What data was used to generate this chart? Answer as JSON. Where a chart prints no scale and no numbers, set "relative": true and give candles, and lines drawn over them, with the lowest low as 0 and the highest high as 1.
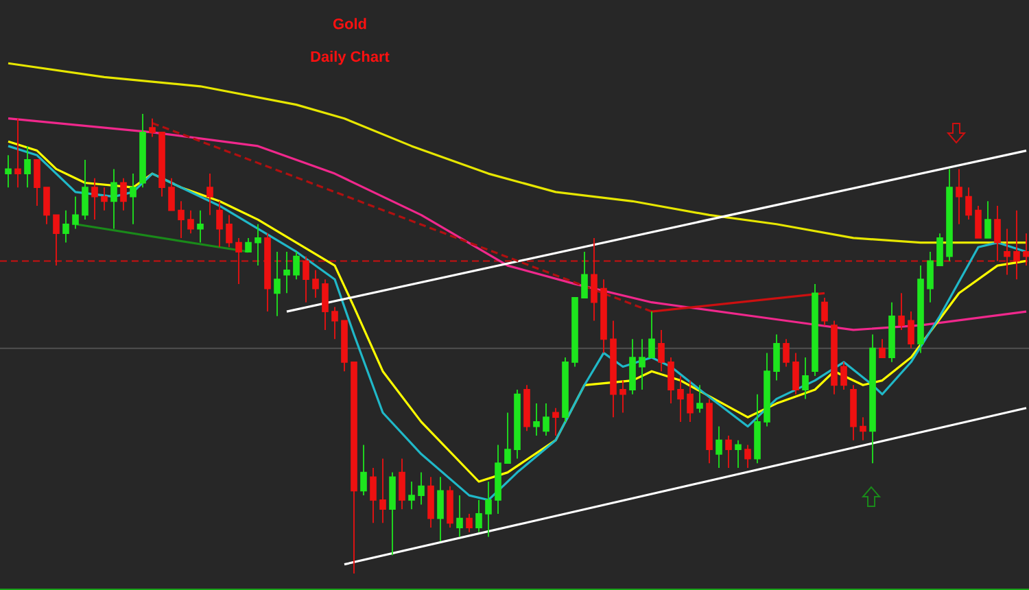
{
  "chart_data": {
    "type": "candlestick",
    "title": "Gold",
    "subtitle": "Daily Chart",
    "relative": true,
    "categories": [
      null,
      null,
      null,
      null,
      null,
      null,
      null,
      null,
      null,
      null,
      null,
      null,
      null,
      null,
      null,
      null,
      null,
      null,
      null,
      null,
      null,
      null,
      null,
      null,
      null,
      null,
      null,
      null,
      null,
      null,
      null,
      null,
      null,
      null,
      null,
      null,
      null,
      null,
      null,
      null,
      null,
      null,
      null,
      null,
      null,
      null,
      null,
      null,
      null,
      null,
      null,
      null,
      null,
      null,
      null,
      null,
      null,
      null,
      null,
      null,
      null,
      null,
      null,
      null,
      null,
      null,
      null,
      null,
      null,
      null,
      null,
      null,
      null,
      null,
      null,
      null,
      null,
      null,
      null,
      null,
      null,
      null,
      null,
      null,
      null,
      null,
      null,
      null,
      null,
      null,
      null,
      null,
      null,
      null,
      null,
      null,
      null,
      null,
      null,
      null,
      null,
      null,
      null,
      null,
      null,
      null,
      null
    ],
    "ohlc": [
      [
        0.87,
        0.91,
        0.84,
        0.88
      ],
      [
        0.88,
        0.99,
        0.84,
        0.87
      ],
      [
        0.87,
        0.93,
        0.84,
        0.9
      ],
      [
        0.9,
        0.9,
        0.8,
        0.84
      ],
      [
        0.84,
        0.84,
        0.76,
        0.78
      ],
      [
        0.78,
        0.78,
        0.67,
        0.74
      ],
      [
        0.74,
        0.79,
        0.72,
        0.76
      ],
      [
        0.76,
        0.82,
        0.75,
        0.78
      ],
      [
        0.78,
        0.9,
        0.77,
        0.84
      ],
      [
        0.84,
        0.86,
        0.77,
        0.82
      ],
      [
        0.82,
        0.84,
        0.79,
        0.81
      ],
      [
        0.81,
        0.88,
        0.75,
        0.85
      ],
      [
        0.85,
        0.86,
        0.79,
        0.81
      ],
      [
        0.82,
        0.87,
        0.76,
        0.84
      ],
      [
        0.85,
        1,
        0.84,
        0.96
      ],
      [
        0.97,
        0.99,
        0.95,
        0.96
      ],
      [
        0.96,
        0.96,
        0.82,
        0.84
      ],
      [
        0.84,
        0.86,
        0.79,
        0.79
      ],
      [
        0.79,
        0.81,
        0.73,
        0.77
      ],
      [
        0.77,
        0.79,
        0.74,
        0.75
      ],
      [
        0.75,
        0.79,
        0.72,
        0.76
      ],
      [
        0.84,
        0.87,
        0.78,
        0.82
      ],
      [
        0.79,
        0.81,
        0.71,
        0.75
      ],
      [
        0.76,
        0.78,
        0.71,
        0.72
      ],
      [
        0.72,
        0.73,
        0.63,
        0.7
      ],
      [
        0.7,
        0.73,
        0.7,
        0.72
      ],
      [
        0.72,
        0.76,
        0.67,
        0.73
      ],
      [
        0.73,
        0.74,
        0.57,
        0.62
      ],
      [
        0.61,
        0.7,
        0.56,
        0.64
      ],
      [
        0.65,
        0.7,
        0.61,
        0.66
      ],
      [
        0.65,
        0.7,
        0.64,
        0.69
      ],
      [
        0.68,
        0.69,
        0.59,
        0.64
      ],
      [
        0.64,
        0.66,
        0.6,
        0.62
      ],
      [
        0.63,
        0.64,
        0.53,
        0.57
      ],
      [
        0.57,
        0.58,
        0.51,
        0.55
      ],
      [
        0.55,
        0.55,
        0.44,
        0.46
      ],
      [
        0.46,
        0.46,
        0,
        0.18
      ],
      [
        0.18,
        0.28,
        0.17,
        0.22
      ],
      [
        0.21,
        0.23,
        0.11,
        0.16
      ],
      [
        0.16,
        0.25,
        0.11,
        0.14
      ],
      [
        0.14,
        0.22,
        0.04,
        0.21
      ],
      [
        0.22,
        0.25,
        0.14,
        0.16
      ],
      [
        0.16,
        0.2,
        0.14,
        0.17
      ],
      [
        0.17,
        0.22,
        0.15,
        0.19
      ],
      [
        0.19,
        0.21,
        0.1,
        0.12
      ],
      [
        0.12,
        0.21,
        0.07,
        0.18
      ],
      [
        0.18,
        0.19,
        0.1,
        0.11
      ],
      [
        0.1,
        0.17,
        0.08,
        0.12
      ],
      [
        0.12,
        0.13,
        0.09,
        0.1
      ],
      [
        0.1,
        0.16,
        0.09,
        0.13
      ],
      [
        0.13,
        0.2,
        0.08,
        0.16
      ],
      [
        0.16,
        0.28,
        0.13,
        0.24
      ],
      [
        0.24,
        0.35,
        0.24,
        0.27
      ],
      [
        0.27,
        0.4,
        0.25,
        0.39
      ],
      [
        0.4,
        0.41,
        0.31,
        0.32
      ],
      [
        0.32,
        0.37,
        0.3,
        0.33
      ],
      [
        0.31,
        0.37,
        0.3,
        0.34
      ],
      [
        0.35,
        0.36,
        0.3,
        0.34
      ],
      [
        0.34,
        0.47,
        0.33,
        0.46
      ],
      [
        0.46,
        0.6,
        0.45,
        0.6
      ],
      [
        0.6,
        0.7,
        0.6,
        0.65
      ],
      [
        0.65,
        0.73,
        0.55,
        0.59
      ],
      [
        0.62,
        0.64,
        0.48,
        0.51
      ],
      [
        0.51,
        0.55,
        0.34,
        0.39
      ],
      [
        0.4,
        0.42,
        0.35,
        0.39
      ],
      [
        0.4,
        0.51,
        0.39,
        0.47
      ],
      [
        0.45,
        0.51,
        0.4,
        0.47
      ],
      [
        0.47,
        0.57,
        0.47,
        0.51
      ],
      [
        0.5,
        0.53,
        0.44,
        0.46
      ],
      [
        0.46,
        0.47,
        0.37,
        0.4
      ],
      [
        0.4,
        0.43,
        0.33,
        0.38
      ],
      [
        0.39,
        0.42,
        0.33,
        0.35
      ],
      [
        0.36,
        0.41,
        0.35,
        0.37
      ],
      [
        0.37,
        0.38,
        0.24,
        0.27
      ],
      [
        0.26,
        0.32,
        0.23,
        0.29
      ],
      [
        0.29,
        0.3,
        0.23,
        0.27
      ],
      [
        0.27,
        0.29,
        0.23,
        0.28
      ],
      [
        0.27,
        0.28,
        0.23,
        0.25
      ],
      [
        0.25,
        0.39,
        0.24,
        0.33
      ],
      [
        0.33,
        0.48,
        0.32,
        0.44
      ],
      [
        0.44,
        0.52,
        0.42,
        0.5
      ],
      [
        0.5,
        0.51,
        0.45,
        0.46
      ],
      [
        0.46,
        0.48,
        0.39,
        0.4
      ],
      [
        0.4,
        0.47,
        0.38,
        0.43
      ],
      [
        0.44,
        0.63,
        0.43,
        0.61
      ],
      [
        0.59,
        0.6,
        0.54,
        0.55
      ],
      [
        0.54,
        0.55,
        0.39,
        0.41
      ],
      [
        0.45,
        0.46,
        0.4,
        0.41
      ],
      [
        0.4,
        0.41,
        0.29,
        0.32
      ],
      [
        0.32,
        0.34,
        0.29,
        0.31
      ],
      [
        0.31,
        0.52,
        0.24,
        0.49
      ],
      [
        0.49,
        0.51,
        0.47,
        0.47
      ],
      [
        0.47,
        0.59,
        0.46,
        0.56
      ],
      [
        0.56,
        0.61,
        0.53,
        0.54
      ],
      [
        0.55,
        0.57,
        0.49,
        0.5
      ],
      [
        0.5,
        0.67,
        0.48,
        0.64
      ],
      [
        0.62,
        0.7,
        0.59,
        0.68
      ],
      [
        0.67,
        0.74,
        0.67,
        0.73
      ],
      [
        0.69,
        0.88,
        0.68,
        0.84
      ],
      [
        0.84,
        0.88,
        0.76,
        0.82
      ],
      [
        0.82,
        0.84,
        0.77,
        0.78
      ],
      [
        0.79,
        0.8,
        0.73,
        0.73
      ],
      [
        0.73,
        0.81,
        0.73,
        0.77
      ],
      [
        0.77,
        0.8,
        0.68,
        0.72
      ],
      [
        0.7,
        0.75,
        0.65,
        0.69
      ],
      [
        0.7,
        0.79,
        0.64,
        0.68
      ],
      [
        0.7,
        0.74,
        0.67,
        0.69
      ]
    ],
    "series": [
      {
        "type": "line",
        "color": "#e6e600",
        "values": [
          1.11,
          null,
          null,
          null,
          null,
          null,
          null,
          null,
          null,
          null,
          1.08,
          null,
          null,
          null,
          null,
          null,
          null,
          null,
          null,
          null,
          1.06,
          null,
          null,
          null,
          null,
          null,
          null,
          null,
          null,
          null,
          1.02,
          null,
          null,
          null,
          null,
          0.99,
          null,
          null,
          null,
          null,
          null,
          null,
          0.93,
          null,
          null,
          null,
          null,
          null,
          null,
          null,
          0.87,
          null,
          null,
          null,
          null,
          null,
          null,
          0.83,
          null,
          null,
          null,
          null,
          null,
          null,
          null,
          0.81,
          null,
          null,
          null,
          null,
          null,
          null,
          null,
          0.78,
          null,
          null,
          null,
          null,
          null,
          null,
          0.76,
          null,
          null,
          null,
          null,
          null,
          null,
          null,
          0.73,
          null,
          null,
          null,
          null,
          null,
          null,
          0.72,
          null,
          null,
          null,
          null,
          null,
          null,
          null,
          null,
          null,
          null,
          0.72
        ]
      },
      {
        "type": "line",
        "color": "#f0288c",
        "values": [
          0.99,
          null,
          null,
          null,
          null,
          null,
          null,
          null,
          null,
          null,
          null,
          null,
          null,
          null,
          null,
          0.96,
          null,
          null,
          null,
          null,
          null,
          null,
          null,
          null,
          null,
          null,
          0.93,
          null,
          null,
          null,
          null,
          null,
          null,
          null,
          0.87,
          null,
          null,
          null,
          null,
          null,
          null,
          null,
          null,
          0.78,
          null,
          null,
          null,
          null,
          null,
          null,
          null,
          null,
          0.67,
          null,
          null,
          null,
          null,
          null,
          null,
          0.63,
          null,
          null,
          null,
          null,
          null,
          null,
          null,
          0.59,
          null,
          null,
          null,
          null,
          null,
          null,
          null,
          null,
          null,
          null,
          null,
          null,
          null,
          0.55,
          null,
          null,
          null,
          null,
          null,
          null,
          0.53,
          null,
          null,
          null,
          null,
          null,
          null,
          0.54,
          null,
          null,
          null,
          null,
          null,
          null,
          null,
          null,
          null,
          null,
          0.57
        ]
      },
      {
        "type": "line",
        "color": "#ffff00",
        "values": [
          0.94,
          null,
          null,
          0.92,
          null,
          0.88,
          null,
          null,
          0.85,
          null,
          null,
          null,
          null,
          0.84,
          null,
          0.87,
          null,
          null,
          0.84,
          null,
          null,
          null,
          0.81,
          null,
          null,
          null,
          0.77,
          null,
          null,
          null,
          0.72,
          null,
          null,
          null,
          0.67,
          null,
          0.58,
          null,
          null,
          0.44,
          null,
          null,
          null,
          0.33,
          null,
          null,
          null,
          null,
          null,
          0.2,
          null,
          null,
          0.22,
          null,
          null,
          null,
          null,
          0.29,
          null,
          null,
          0.41,
          null,
          null,
          null,
          null,
          0.42,
          null,
          0.44,
          null,
          null,
          0.42,
          null,
          null,
          null,
          null,
          null,
          null,
          0.34,
          null,
          null,
          0.37,
          null,
          null,
          null,
          0.4,
          null,
          0.44,
          null,
          null,
          0.41,
          null,
          0.42,
          null,
          null,
          0.47,
          null,
          null,
          null,
          null,
          0.61,
          null,
          null,
          null,
          0.67,
          null,
          null,
          0.68
        ]
      },
      {
        "type": "line",
        "color": "#20b8c8",
        "values": [
          0.93,
          null,
          null,
          0.91,
          null,
          0.87,
          null,
          0.83,
          null,
          null,
          null,
          0.82,
          null,
          0.83,
          null,
          0.87,
          null,
          null,
          0.84,
          null,
          null,
          null,
          0.8,
          null,
          null,
          null,
          0.75,
          null,
          null,
          null,
          0.7,
          null,
          null,
          null,
          0.64,
          null,
          0.52,
          null,
          null,
          0.35,
          null,
          null,
          null,
          0.26,
          null,
          null,
          null,
          null,
          0.17,
          null,
          0.16,
          null,
          null,
          0.22,
          null,
          null,
          null,
          0.29,
          null,
          null,
          0.41,
          null,
          0.48,
          null,
          0.45,
          null,
          null,
          0.47,
          null,
          0.45,
          null,
          null,
          0.4,
          null,
          null,
          null,
          null,
          0.32,
          null,
          null,
          0.38,
          null,
          null,
          null,
          0.42,
          null,
          null,
          0.46,
          null,
          null,
          0.41,
          0.39,
          null,
          null,
          0.46,
          null,
          null,
          0.56,
          null,
          null,
          null,
          0.71,
          null,
          0.72,
          null,
          null,
          0.7
        ]
      },
      {
        "type": "line",
        "color": "#ffffff",
        "values": [
          null,
          null,
          null,
          null,
          null,
          null,
          null,
          null,
          null,
          null,
          null,
          null,
          null,
          null,
          null,
          null,
          null,
          null,
          null,
          null,
          null,
          null,
          null,
          null,
          null,
          null,
          null,
          null,
          null,
          0.57,
          null,
          null,
          null,
          null,
          null,
          null,
          null,
          null,
          null,
          null,
          null,
          null,
          null,
          null,
          null,
          null,
          null,
          null,
          null,
          null,
          null,
          null,
          null,
          null,
          null,
          null,
          null,
          null,
          null,
          null,
          null,
          null,
          null,
          null,
          null,
          null,
          null,
          null,
          null,
          null,
          null,
          null,
          null,
          null,
          null,
          null,
          null,
          null,
          null,
          null,
          null,
          null,
          null,
          null,
          null,
          null,
          null,
          null,
          null,
          null,
          null,
          null,
          null,
          null,
          null,
          null,
          null,
          null,
          null,
          null,
          null,
          null,
          null,
          null,
          null,
          null,
          0.92
        ]
      },
      {
        "type": "line",
        "color": "#ffffff",
        "values": [
          null,
          null,
          null,
          null,
          null,
          null,
          null,
          null,
          null,
          null,
          null,
          null,
          null,
          null,
          null,
          null,
          null,
          null,
          null,
          null,
          null,
          null,
          null,
          null,
          null,
          null,
          null,
          null,
          null,
          null,
          null,
          null,
          null,
          null,
          null,
          0.02,
          null,
          null,
          null,
          null,
          null,
          null,
          null,
          null,
          null,
          null,
          null,
          null,
          null,
          null,
          null,
          null,
          null,
          null,
          null,
          null,
          null,
          null,
          null,
          null,
          null,
          null,
          null,
          null,
          null,
          null,
          null,
          null,
          null,
          null,
          null,
          null,
          null,
          null,
          null,
          null,
          null,
          null,
          null,
          null,
          null,
          null,
          null,
          null,
          null,
          null,
          null,
          null,
          null,
          null,
          null,
          null,
          null,
          null,
          null,
          null,
          null,
          null,
          null,
          null,
          null,
          null,
          null,
          null,
          null,
          null,
          0.36
        ]
      },
      {
        "type": "line",
        "color": "#b01010",
        "line_style": "dashed",
        "values": [
          null,
          null,
          null,
          null,
          null,
          null,
          null,
          null,
          null,
          null,
          null,
          null,
          null,
          null,
          null,
          0.98,
          null,
          null,
          null,
          null,
          null,
          null,
          null,
          null,
          null,
          null,
          null,
          null,
          null,
          null,
          null,
          null,
          null,
          null,
          null,
          null,
          null,
          null,
          null,
          null,
          null,
          null,
          null,
          null,
          null,
          null,
          null,
          null,
          null,
          null,
          null,
          null,
          null,
          null,
          null,
          null,
          null,
          null,
          null,
          null,
          null,
          null,
          null,
          null,
          null,
          null,
          null,
          0.57,
          null,
          null,
          null,
          null,
          null,
          null,
          null,
          null,
          null,
          null,
          null,
          null,
          null,
          null,
          null,
          null,
          null,
          null,
          null,
          null,
          null,
          null,
          null,
          null,
          null,
          null,
          null,
          null,
          null,
          null,
          null,
          null,
          null,
          null,
          null,
          null,
          null,
          null,
          null
        ]
      },
      {
        "type": "line",
        "color": "#1a8a1a",
        "values": [
          null,
          null,
          null,
          null,
          null,
          null,
          null,
          0.76,
          null,
          null,
          null,
          null,
          null,
          null,
          null,
          null,
          null,
          null,
          null,
          null,
          null,
          null,
          null,
          null,
          null,
          0.7,
          null,
          null,
          null,
          null,
          null,
          null,
          null,
          null,
          null,
          null,
          null,
          null,
          null,
          null,
          null,
          null,
          null,
          null,
          null,
          null,
          null,
          null,
          null,
          null,
          null,
          null,
          null,
          null,
          null,
          null,
          null,
          null,
          null,
          null,
          null,
          null,
          null,
          null,
          null,
          null,
          null,
          null,
          null,
          null,
          null,
          null,
          null,
          null,
          null,
          null,
          null,
          null,
          null,
          null,
          null,
          null,
          null,
          null,
          null,
          null,
          null,
          null,
          null,
          null,
          null,
          null,
          null,
          null,
          null,
          null,
          null,
          null,
          null,
          null,
          null,
          null,
          null,
          null,
          null,
          null,
          null
        ]
      },
      {
        "type": "line",
        "color": "#cc1010",
        "values": [
          null,
          null,
          null,
          null,
          null,
          null,
          null,
          null,
          null,
          null,
          null,
          null,
          null,
          null,
          null,
          null,
          null,
          null,
          null,
          null,
          null,
          null,
          null,
          null,
          null,
          null,
          null,
          null,
          null,
          null,
          null,
          null,
          null,
          null,
          null,
          null,
          null,
          null,
          null,
          null,
          null,
          null,
          null,
          null,
          null,
          null,
          null,
          null,
          null,
          null,
          null,
          null,
          null,
          null,
          null,
          null,
          null,
          null,
          null,
          null,
          null,
          null,
          null,
          null,
          null,
          null,
          null,
          0.57,
          null,
          null,
          null,
          null,
          null,
          null,
          null,
          null,
          null,
          null,
          null,
          null,
          null,
          null,
          null,
          null,
          null,
          0.61,
          null,
          null,
          null,
          null,
          null,
          null,
          null,
          null,
          null,
          null,
          null,
          null,
          null,
          null,
          null,
          null,
          null,
          null,
          null,
          null,
          null
        ]
      }
    ],
    "ref_lines": [
      {
        "axis": "y",
        "value": 0.68,
        "color": "#cc1010",
        "line_style": "dashed"
      },
      {
        "axis": "y",
        "value": 0.49,
        "color": "#505050",
        "line_style": "solid"
      }
    ]
  }
}
